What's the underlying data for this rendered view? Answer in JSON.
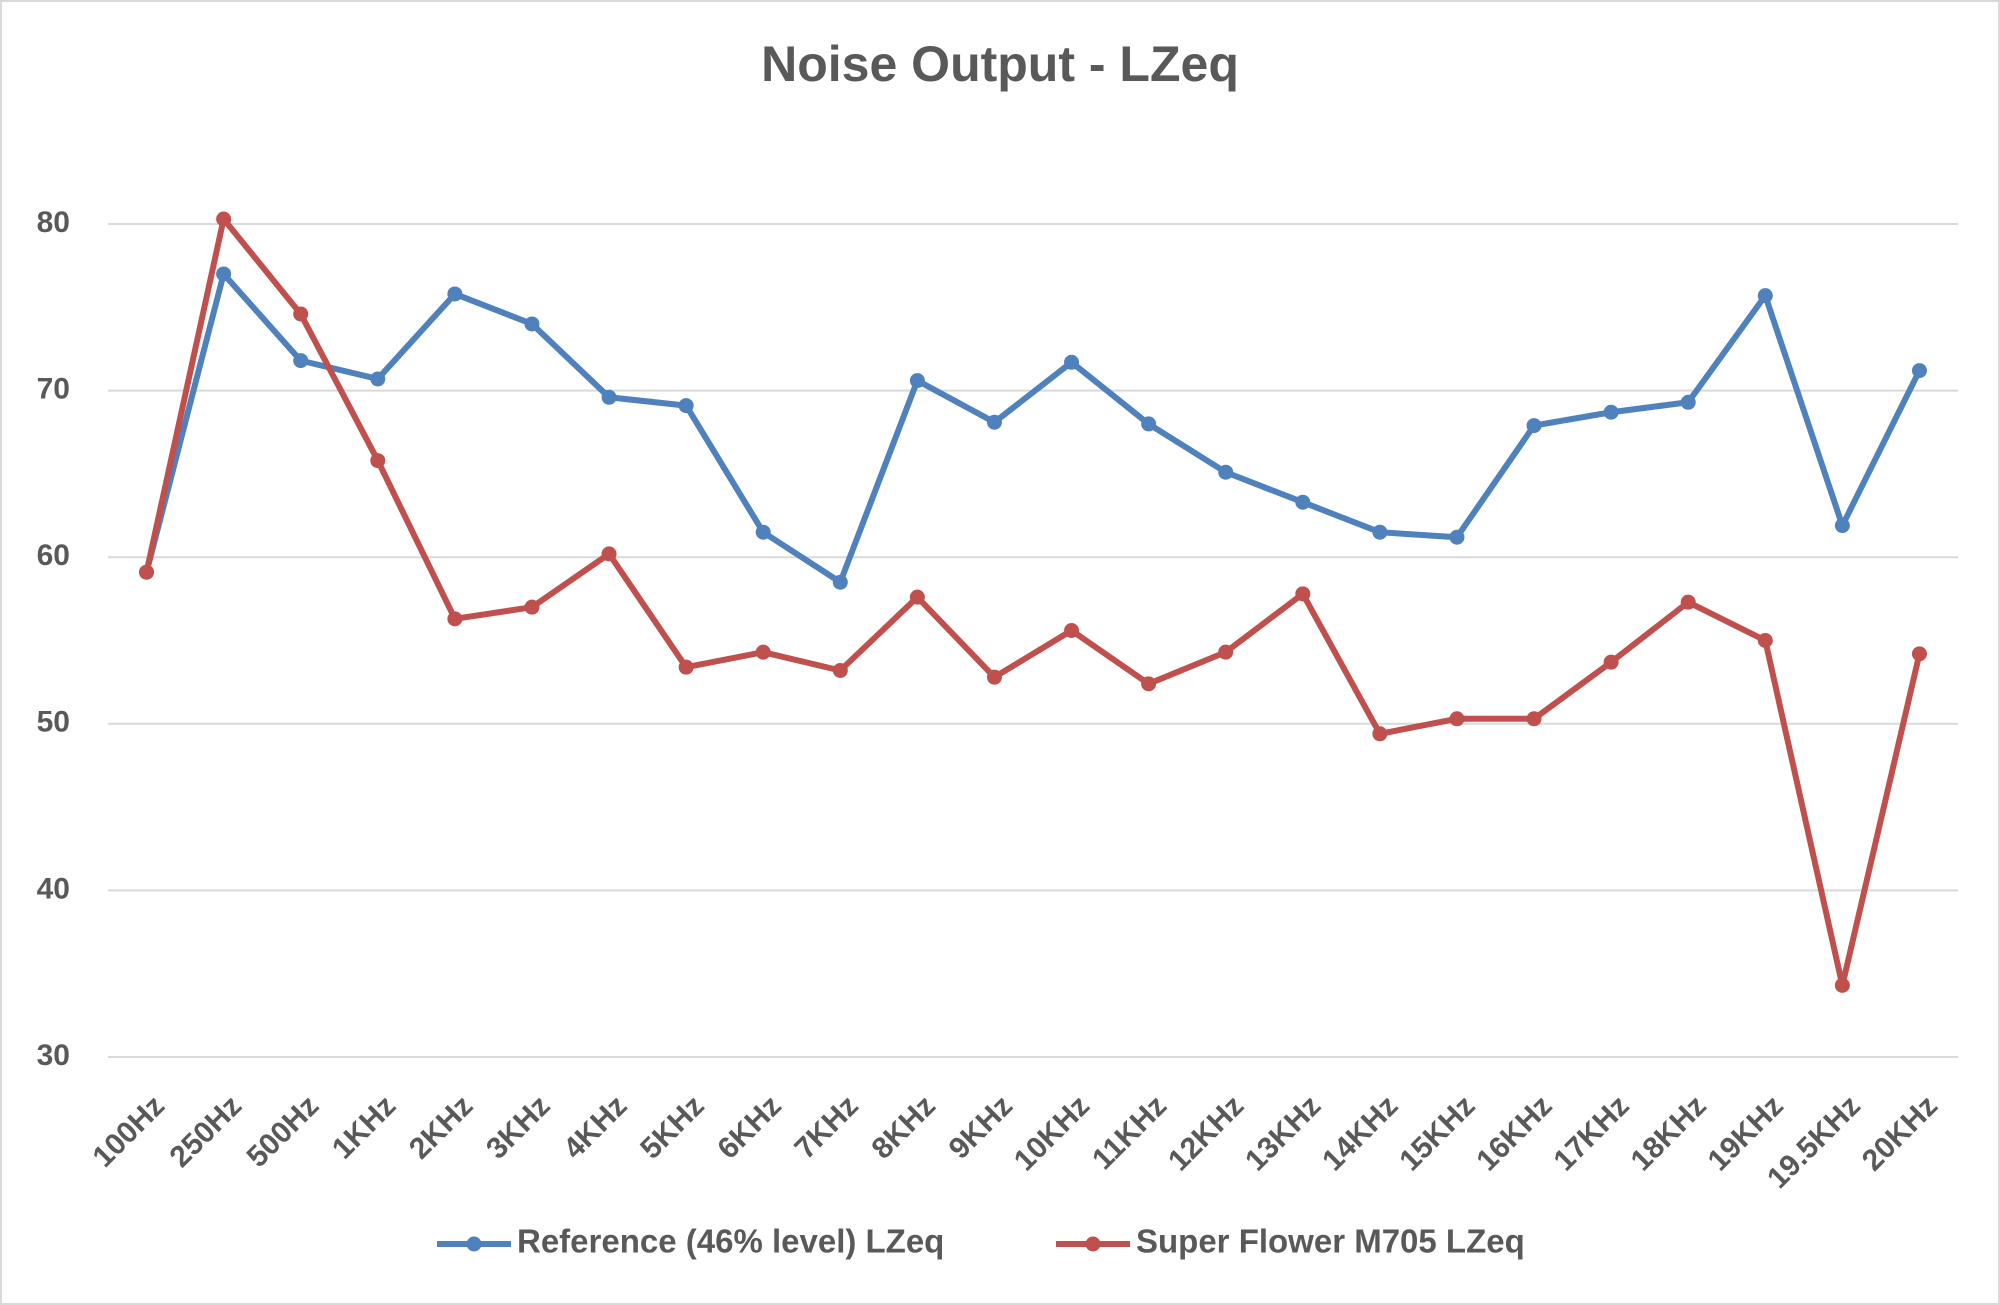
{
  "chart_data": {
    "type": "line",
    "title": "Noise Output  - LZeq",
    "categories": [
      "100Hz",
      "250Hz",
      "500Hz",
      "1KHz",
      "2KHz",
      "3KHz",
      "4KHz",
      "5KHz",
      "6KHz",
      "7KHz",
      "8KHz",
      "9KHz",
      "10KHz",
      "11KHz",
      "12KHz",
      "13KHz",
      "14KHz",
      "15KHz",
      "16KHz",
      "17KHz",
      "18KHz",
      "19KHz",
      "19.5KHz",
      "20KHz"
    ],
    "series": [
      {
        "name": "Reference (46% level) LZeq",
        "color": "#4f81bd",
        "values": [
          59.1,
          77.0,
          71.8,
          70.7,
          75.8,
          74.0,
          69.6,
          69.1,
          61.5,
          58.5,
          70.6,
          68.1,
          71.7,
          68.0,
          65.1,
          63.3,
          61.5,
          61.2,
          67.9,
          68.7,
          69.3,
          75.7,
          61.9,
          71.2
        ]
      },
      {
        "name": "Super Flower M705 LZeq",
        "color": "#c0504d",
        "values": [
          59.1,
          80.3,
          74.6,
          65.8,
          56.3,
          57.0,
          60.2,
          53.4,
          54.3,
          53.2,
          57.6,
          52.8,
          55.6,
          52.4,
          54.3,
          57.8,
          49.4,
          50.3,
          50.3,
          53.7,
          57.3,
          55.0,
          34.3,
          54.2
        ]
      }
    ],
    "ylim": [
      30,
      80
    ],
    "yticks": [
      30,
      40,
      50,
      60,
      70,
      80
    ],
    "grid": true,
    "legend": "bottom"
  }
}
